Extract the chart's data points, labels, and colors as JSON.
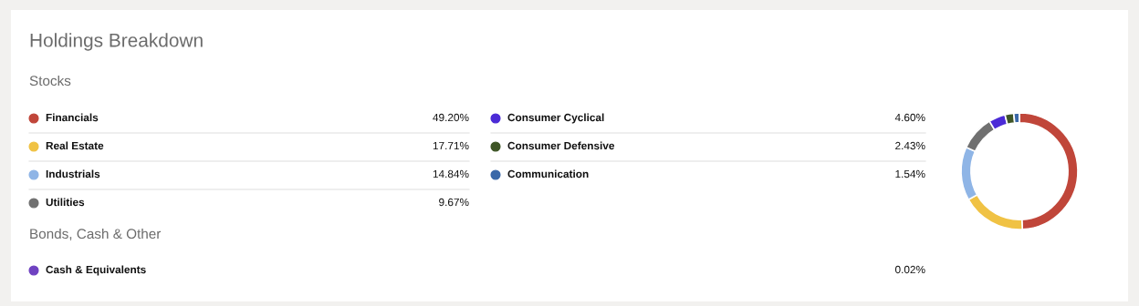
{
  "chart_data": {
    "type": "donut",
    "title": "Holdings Breakdown",
    "subtitle": "Stocks",
    "annotations": [
      "Bonds, Cash & Other"
    ],
    "categories": [
      "Financials",
      "Real Estate",
      "Industrials",
      "Utilities",
      "Consumer Cyclical",
      "Consumer Defensive",
      "Communication",
      "Cash & Equivalents"
    ],
    "values": [
      49.2,
      17.71,
      14.84,
      9.67,
      4.6,
      2.43,
      1.54,
      0.02
    ],
    "value_labels": [
      "49.20%",
      "17.71%",
      "14.84%",
      "9.67%",
      "4.60%",
      "2.43%",
      "1.54%",
      "0.02%"
    ],
    "colors": [
      "#c0463a",
      "#f0c244",
      "#8fb5e6",
      "#707070",
      "#4b2bd6",
      "#3e5526",
      "#3a68a8",
      "#6f42c1"
    ],
    "legend": "left"
  }
}
